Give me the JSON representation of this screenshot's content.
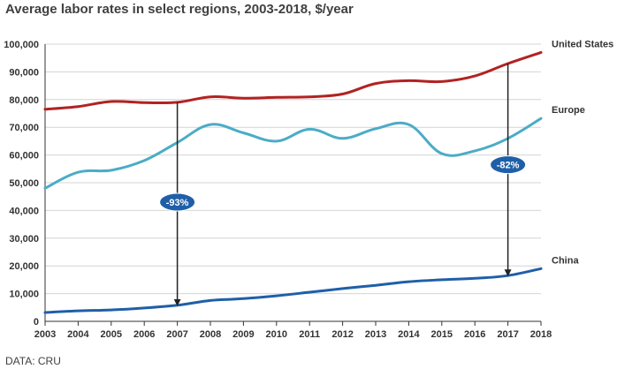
{
  "chart_data": {
    "type": "line",
    "title": "Average labor rates in select regions, 2003-2018, $/year",
    "source": "DATA: CRU",
    "xlabel": "",
    "ylabel": "",
    "ylim": [
      0,
      100000
    ],
    "grid": true,
    "x": [
      "2003",
      "2004",
      "2005",
      "2006",
      "2007",
      "2008",
      "2009",
      "2010",
      "2011",
      "2012",
      "2013",
      "2014",
      "2015",
      "2016",
      "2017",
      "2018"
    ],
    "y_ticks": [
      "0",
      "10,000",
      "20,000",
      "30,000",
      "40,000",
      "50,000",
      "60,000",
      "70,000",
      "80,000",
      "90,000",
      "100,000"
    ],
    "series": [
      {
        "name": "United States",
        "color": "#b22222",
        "values": [
          76500,
          77500,
          79300,
          78900,
          79000,
          81000,
          80500,
          80800,
          81000,
          82000,
          85800,
          86800,
          86500,
          88500,
          93000,
          97000
        ]
      },
      {
        "name": "Europe",
        "color": "#4bacc6",
        "values": [
          48000,
          53800,
          54500,
          58000,
          64500,
          71000,
          68000,
          65000,
          69300,
          66000,
          69500,
          71000,
          60500,
          61500,
          66000,
          73200
        ]
      },
      {
        "name": "China",
        "color": "#1f5fa8",
        "values": [
          3200,
          3800,
          4100,
          4800,
          5800,
          7500,
          8200,
          9200,
          10500,
          11800,
          13000,
          14300,
          15000,
          15500,
          16500,
          19000
        ]
      }
    ],
    "annotations": [
      {
        "text": "-93%",
        "x": "2007",
        "from_value": 79000,
        "to_value": 5800
      },
      {
        "text": "-82%",
        "x": "2017",
        "from_value": 93000,
        "to_value": 16500
      }
    ]
  }
}
